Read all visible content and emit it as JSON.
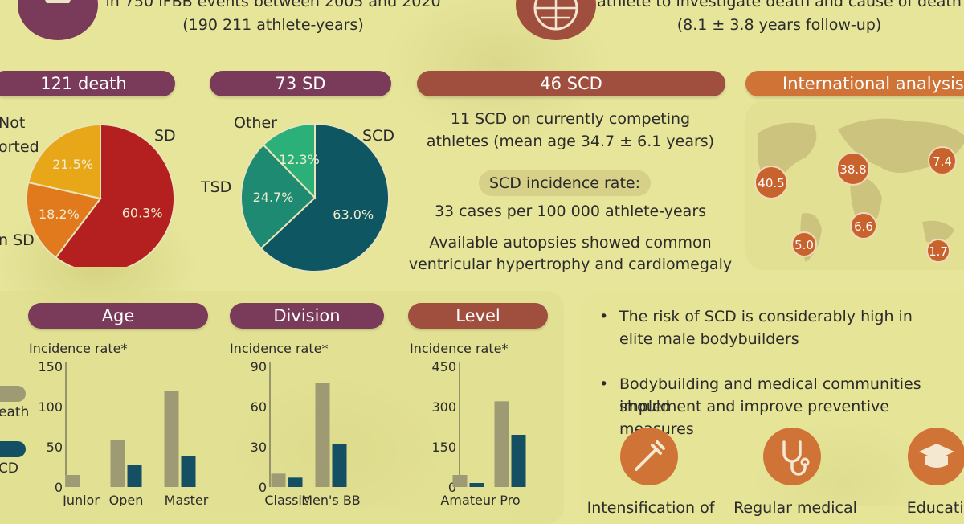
{
  "top": {
    "events_line": "in 750 IFBB events between 2005 and 2020",
    "athlete_years": "(190 211 athlete-years)",
    "investigate_line": "athlete to investigate death and cause of death",
    "followup": "(8.1 ± 3.8 years follow-up)"
  },
  "pills": {
    "death": "121 death",
    "sd": "73 SD",
    "scd": "46 SCD",
    "international": "International analysis"
  },
  "pie_labels": {
    "death": {
      "not_line1": "Not",
      "not_line2": "orted",
      "sd": "SD",
      "non_sd": "n SD"
    },
    "sd": {
      "other": "Other",
      "scd": "SCD",
      "tsd": "TSD"
    }
  },
  "scd_info": {
    "competing_line1": "11 SCD on currently competing",
    "competing_line2": "athletes (mean age 34.7 ± 6.1 years)",
    "incidence_title": "SCD incidence rate:",
    "incidence_value": "33 cases per 100 000 athlete-years",
    "autopsy_line1": "Available autopsies showed common",
    "autopsy_line2": "ventricular hypertrophy and cardiomegaly"
  },
  "map_values": [
    "40.5",
    "38.8",
    "7.4",
    "6.6",
    "5.0",
    "1.7"
  ],
  "bar_titles": {
    "age": "Age",
    "division": "Division",
    "level": "Level",
    "incidence": "Incidence rate*"
  },
  "legend": {
    "death": "eath",
    "scd": "CD"
  },
  "conclusions": {
    "b1_line1": "The risk of SCD is considerably high in",
    "b1_line2": "elite male bodybuilders",
    "b2_line1": "Bodybuilding and medical communities should",
    "b2_line2": "implement and improve preventive measures",
    "measure1": "Intensification of",
    "measure2": "Regular medical",
    "measure3": "Educatio"
  },
  "colors": {
    "purple": "#7a3a59",
    "rust": "#a04e3e",
    "orange": "#cf7336",
    "death_bar": "#9e9a74",
    "scd_bar": "#154f63"
  },
  "chart_data": [
    {
      "type": "pie",
      "slices": [
        {
          "label": "SD",
          "value": 60.3,
          "text": "60.3%",
          "color": "#b3201f"
        },
        {
          "label": "Non SD",
          "value": 18.2,
          "text": "18.2%",
          "color": "#e07a1c"
        },
        {
          "label": "Not reported",
          "value": 21.5,
          "text": "21.5%",
          "color": "#e8a718"
        }
      ]
    },
    {
      "type": "pie",
      "slices": [
        {
          "label": "SCD",
          "value": 63.0,
          "text": "63.0%",
          "color": "#0f5663"
        },
        {
          "label": "TSD",
          "value": 24.7,
          "text": "24.7%",
          "color": "#1e8a72"
        },
        {
          "label": "Other",
          "value": 12.3,
          "text": "12.3%",
          "color": "#2bb07a"
        }
      ]
    },
    {
      "type": "bar",
      "title": "Age",
      "ylabel": "Incidence rate*",
      "categories": [
        "Junior",
        "Open",
        "Master"
      ],
      "ylim": [
        0,
        150
      ],
      "yticks": [
        0,
        50,
        100,
        150
      ],
      "series": [
        {
          "name": "Death",
          "values": [
            15,
            58,
            120
          ]
        },
        {
          "name": "SCD",
          "values": [
            0,
            27,
            38
          ]
        }
      ]
    },
    {
      "type": "bar",
      "title": "Division",
      "ylabel": "Incidence rate*",
      "categories": [
        "Classic",
        "Men's BB"
      ],
      "ylim": [
        0,
        90
      ],
      "yticks": [
        0,
        30,
        60,
        90
      ],
      "series": [
        {
          "name": "Death",
          "values": [
            10,
            78
          ]
        },
        {
          "name": "SCD",
          "values": [
            7,
            32
          ]
        }
      ]
    },
    {
      "type": "bar",
      "title": "Level",
      "ylabel": "Incidence rate*",
      "categories": [
        "Amateur",
        "Pro"
      ],
      "ylim": [
        0,
        450
      ],
      "yticks": [
        0,
        150,
        300,
        450
      ],
      "series": [
        {
          "name": "Death",
          "values": [
            45,
            320
          ]
        },
        {
          "name": "SCD",
          "values": [
            15,
            195
          ]
        }
      ]
    }
  ]
}
